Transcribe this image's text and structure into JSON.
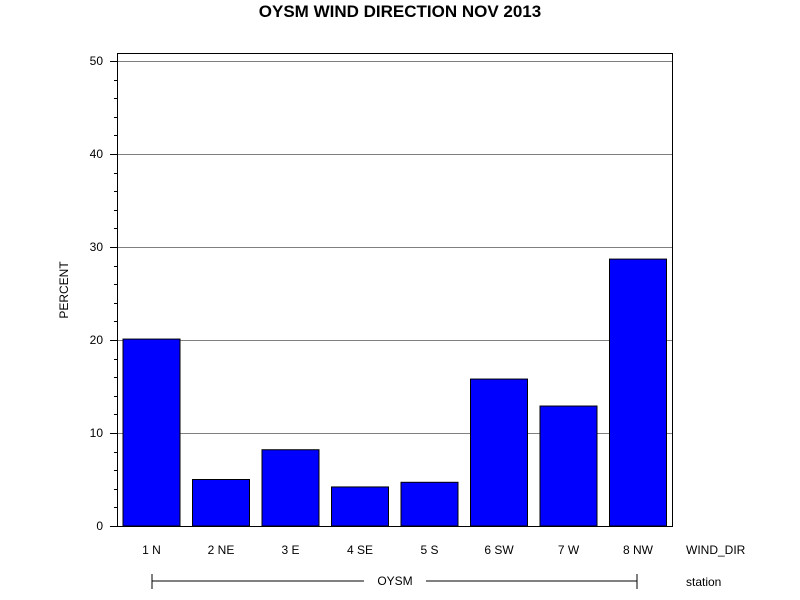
{
  "chart_data": {
    "type": "bar",
    "title": "OYSM WIND DIRECTION NOV 2013",
    "ylabel": "PERCENT",
    "xlabel": "WIND_DIR",
    "group_axis_label": "station",
    "group_label": "OYSM",
    "categories": [
      "1 N",
      "2 NE",
      "3 E",
      "4 SE",
      "5 S",
      "6 SW",
      "7 W",
      "8 NW"
    ],
    "values": [
      20.1,
      5.0,
      8.2,
      4.2,
      4.7,
      15.8,
      12.9,
      28.7
    ],
    "ylim": [
      0,
      50
    ],
    "y_ticks": [
      "0",
      "10",
      "20",
      "30",
      "40",
      "50"
    ],
    "y_tick_values": [
      0,
      10,
      20,
      30,
      40,
      50
    ],
    "grid": true,
    "bar_color": "#0000ff",
    "grid_color": "#808080"
  }
}
